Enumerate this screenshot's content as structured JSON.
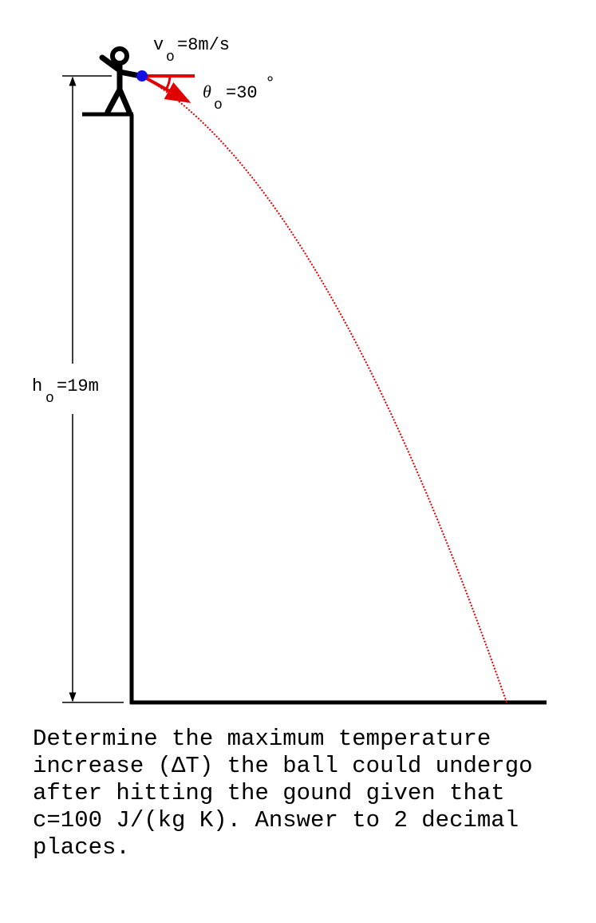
{
  "velocity_label": {
    "symbol": "v",
    "subscript": "o",
    "value": "=8m/s"
  },
  "angle_label": {
    "symbol": "θ",
    "subscript": "o",
    "value": "=30",
    "degree": "°"
  },
  "height_label": {
    "symbol": "h",
    "subscript": "o",
    "value": "=19m"
  },
  "question": {
    "lines": [
      "Determine the maximum temperature",
      "increase (ΔT) the ball could undergo",
      "after hitting the gound given that",
      "c=100 J/(kg K). Answer to 2 decimal",
      "places."
    ]
  }
}
